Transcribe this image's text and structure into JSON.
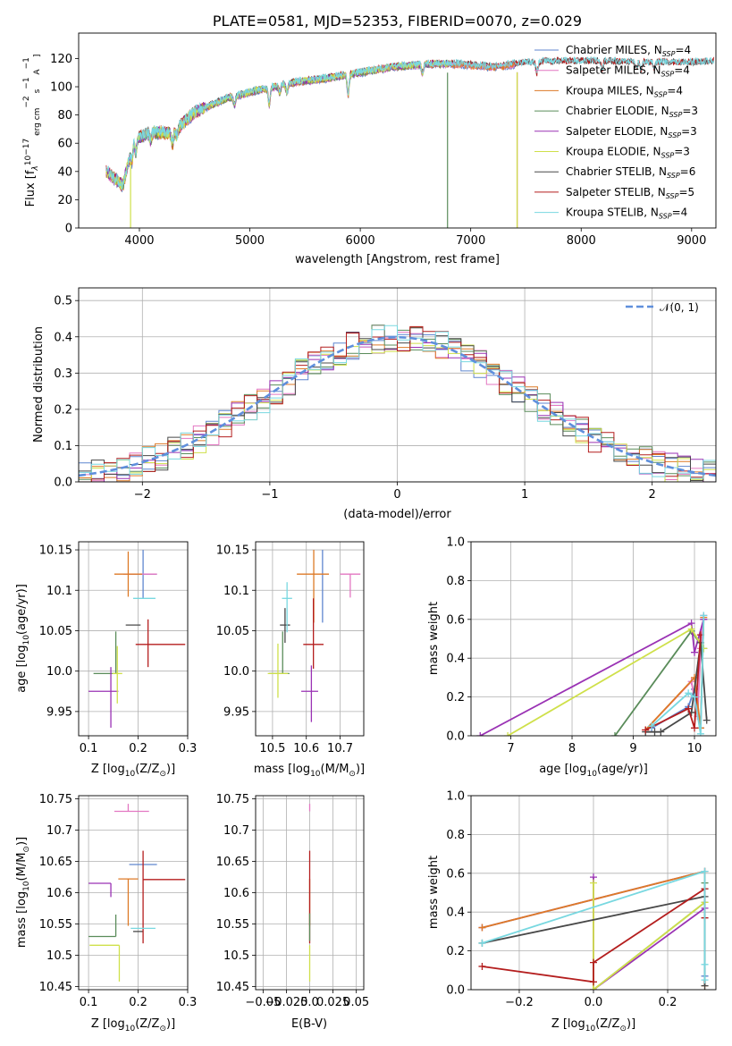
{
  "palette": [
    "#5f86cf",
    "#e377c2",
    "#dd7a27",
    "#5a8c5a",
    "#9a32b4",
    "#cfe04a",
    "#484848",
    "#b41e1e",
    "#78d8e0"
  ],
  "normal_curve_color": "#5f8fdc",
  "chart_data": [
    {
      "id": "spectrum",
      "type": "line",
      "title": "PLATE=0581, MJD=52353, FIBERID=0070, z=0.029",
      "xlabel": "wavelength [Angstrom, rest frame]",
      "ylabel_parts": [
        "Flux [f",
        "λ",
        "10",
        "−17",
        " erg cm",
        "−2",
        " s",
        "−1",
        " A",
        "−1",
        "]"
      ],
      "xlim": [
        3450,
        9220
      ],
      "ylim": [
        0,
        138
      ],
      "xticks": [
        4000,
        5000,
        6000,
        7000,
        8000,
        9000
      ],
      "yticks": [
        0,
        20,
        40,
        60,
        80,
        100,
        120
      ],
      "grid": false,
      "legend_position": "top-right",
      "legend": [
        {
          "base": "Chabrier MILES, N",
          "sub": "SSP",
          "suffix": "=4"
        },
        {
          "base": "Salpeter MILES, N",
          "sub": "SSP",
          "suffix": "=4"
        },
        {
          "base": "Kroupa MILES, N",
          "sub": "SSP",
          "suffix": "=4"
        },
        {
          "base": "Chabrier ELODIE, N",
          "sub": "SSP",
          "suffix": "=3"
        },
        {
          "base": "Salpeter ELODIE, N",
          "sub": "SSP",
          "suffix": "=3"
        },
        {
          "base": "Kroupa ELODIE, N",
          "sub": "SSP",
          "suffix": "=3"
        },
        {
          "base": "Chabrier STELIB, N",
          "sub": "SSP",
          "suffix": "=6"
        },
        {
          "base": "Salpeter STELIB, N",
          "sub": "SSP",
          "suffix": "=5"
        },
        {
          "base": "Kroupa STELIB, N",
          "sub": "SSP",
          "suffix": "=4"
        }
      ],
      "continuum_wavelength": [
        3700,
        3850,
        3950,
        4100,
        4300,
        4500,
        4800,
        5100,
        5400,
        5700,
        6000,
        6300,
        6600,
        6900,
        7200,
        7500,
        7800,
        8200,
        8600,
        9000,
        9200
      ],
      "continuum_flux": [
        40,
        30,
        62,
        68,
        67,
        82,
        92,
        98,
        103,
        106,
        110,
        114,
        116,
        116,
        114,
        117,
        118,
        118,
        117,
        117,
        118
      ],
      "spectrum_range": {
        "stelib_end": 9200,
        "miles_end": 7400,
        "elodie_end": 6800
      },
      "drop_lines": [
        {
          "series": 5,
          "x": 3920
        },
        {
          "series": 3,
          "x": 6790
        },
        {
          "series": 7,
          "x": 7420
        },
        {
          "series": 5,
          "x": 7420
        }
      ]
    },
    {
      "id": "residual-histogram",
      "type": "step",
      "xlabel": "(data-model)/error",
      "ylabel": "Normed distribution",
      "xlim": [
        -2.5,
        2.5
      ],
      "ylim": [
        0,
        0.535
      ],
      "xticks": [
        -2,
        -1,
        0,
        1,
        2
      ],
      "yticks": [
        0.0,
        0.1,
        0.2,
        0.3,
        0.4,
        0.5
      ],
      "grid": true,
      "legend_position": "top-right",
      "legend": [
        {
          "label": "𝒩(0, 1)"
        }
      ],
      "bin_width": 0.1
    },
    {
      "id": "age-vs-z",
      "type": "errorbar",
      "xlabel": {
        "base": "Z [log",
        "sub": "10",
        "rest": "(Z/Z",
        "sub2": "⊙",
        "end": ")]"
      },
      "ylabel": {
        "base": "age  [log",
        "sub": "10",
        "rest": "(age/yr)]"
      },
      "xlim": [
        0.08,
        0.3
      ],
      "ylim": [
        9.92,
        10.16
      ],
      "xticks": [
        0.1,
        0.2,
        0.3
      ],
      "yticks": [
        9.95,
        10.0,
        10.05,
        10.1,
        10.15
      ],
      "grid": true,
      "points": [
        {
          "series": 0,
          "x": 0.21,
          "y": 10.12,
          "xerr": [
            0.028,
            0.028
          ],
          "yerr": [
            0.03,
            0.03
          ]
        },
        {
          "series": 1,
          "x": 0.21,
          "y": 10.12,
          "xerr": [
            0.04,
            0.028
          ],
          "yerr": [
            0.0,
            0.0
          ]
        },
        {
          "series": 2,
          "x": 0.18,
          "y": 10.12,
          "xerr": [
            0.028,
            0.028
          ],
          "yerr": [
            0.028,
            0.028
          ]
        },
        {
          "series": 3,
          "x": 0.155,
          "y": 9.997,
          "xerr": [
            0.045,
            0.005
          ],
          "yerr": [
            0.0,
            0.052
          ]
        },
        {
          "series": 4,
          "x": 0.145,
          "y": 9.975,
          "xerr": [
            0.045,
            0.015
          ],
          "yerr": [
            0.045,
            0.03
          ]
        },
        {
          "series": 5,
          "x": 0.158,
          "y": 9.997,
          "xerr": [
            0.01,
            0.01
          ],
          "yerr": [
            0.037,
            0.034
          ]
        },
        {
          "series": 6,
          "x": 0.205,
          "y": 10.057,
          "xerr": [
            0.03,
            0.0
          ],
          "yerr": [
            0.0,
            0.0
          ]
        },
        {
          "series": 7,
          "x": 0.22,
          "y": 10.033,
          "xerr": [
            0.025,
            0.075
          ],
          "yerr": [
            0.028,
            0.031
          ]
        },
        {
          "series": 8,
          "x": 0.21,
          "y": 10.09,
          "xerr": [
            0.02,
            0.025
          ],
          "yerr": [
            0.0,
            0.0
          ]
        }
      ]
    },
    {
      "id": "age-vs-mass",
      "type": "errorbar",
      "xlabel": {
        "base": "mass [log",
        "sub": "10",
        "rest": "(M/M",
        "sub2": "⊙",
        "end": ")]"
      },
      "xlim": [
        10.45,
        10.77
      ],
      "ylim": [
        9.92,
        10.16
      ],
      "xticks": [
        10.5,
        10.6,
        10.7
      ],
      "yticks": [
        9.95,
        10.0,
        10.05,
        10.1,
        10.15
      ],
      "grid": true,
      "points": [
        {
          "series": 0,
          "x": 10.648,
          "y": 10.12,
          "xerr": [
            0.0,
            0.0
          ],
          "yerr": [
            0.06,
            0.03
          ]
        },
        {
          "series": 1,
          "x": 10.73,
          "y": 10.12,
          "xerr": [
            0.03,
            0.03
          ],
          "yerr": [
            0.029,
            0.0
          ]
        },
        {
          "series": 2,
          "x": 10.622,
          "y": 10.12,
          "xerr": [
            0.05,
            0.045
          ],
          "yerr": [
            0.06,
            0.03
          ]
        },
        {
          "series": 3,
          "x": 10.53,
          "y": 9.997,
          "xerr": [
            0.04,
            0.02
          ],
          "yerr": [
            0.0,
            0.052
          ]
        },
        {
          "series": 4,
          "x": 10.615,
          "y": 9.975,
          "xerr": [
            0.03,
            0.02
          ],
          "yerr": [
            0.038,
            0.032
          ]
        },
        {
          "series": 5,
          "x": 10.516,
          "y": 9.997,
          "xerr": [
            0.03,
            0.03
          ],
          "yerr": [
            0.03,
            0.037
          ]
        },
        {
          "series": 6,
          "x": 10.537,
          "y": 10.057,
          "xerr": [
            0.015,
            0.015
          ],
          "yerr": [
            0.022,
            0.021
          ]
        },
        {
          "series": 7,
          "x": 10.621,
          "y": 10.033,
          "xerr": [
            0.03,
            0.03
          ],
          "yerr": [
            0.03,
            0.057
          ]
        },
        {
          "series": 8,
          "x": 10.543,
          "y": 10.09,
          "xerr": [
            0.015,
            0.015
          ],
          "yerr": [
            0.042,
            0.02
          ]
        }
      ]
    },
    {
      "id": "mass-weight-vs-age",
      "type": "line",
      "xlabel": {
        "base": "age  [log",
        "sub": "10",
        "rest": "(age/yr)]"
      },
      "ylabel": "mass weight",
      "xlim": [
        6.35,
        10.35
      ],
      "ylim": [
        0.0,
        1.0
      ],
      "xticks": [
        7,
        8,
        9,
        10
      ],
      "yticks": [
        0.0,
        0.2,
        0.4,
        0.6,
        0.8,
        1.0
      ],
      "grid": true,
      "series_points": [
        {
          "series": 0,
          "x": [
            9.3,
            9.9,
            10.0,
            10.1,
            10.15
          ],
          "y": [
            0.04,
            0.15,
            0.24,
            0.04,
            0.6
          ]
        },
        {
          "series": 1,
          "x": [
            9.2,
            9.95,
            10.05,
            10.1,
            10.15
          ],
          "y": [
            0.03,
            0.28,
            0.1,
            0.45,
            0.62
          ]
        },
        {
          "series": 2,
          "x": [
            9.2,
            10.0,
            10.1,
            10.15
          ],
          "y": [
            0.03,
            0.3,
            0.04,
            0.61
          ]
        },
        {
          "series": 3,
          "x": [
            8.7,
            9.95,
            10.15
          ],
          "y": [
            0.0,
            0.54,
            0.45
          ]
        },
        {
          "series": 4,
          "x": [
            6.5,
            9.95,
            10.0,
            10.15
          ],
          "y": [
            0.0,
            0.58,
            0.43,
            0.6
          ]
        },
        {
          "series": 5,
          "x": [
            6.95,
            9.95,
            10.15
          ],
          "y": [
            0.0,
            0.55,
            0.45
          ]
        },
        {
          "series": 6,
          "x": [
            9.2,
            9.35,
            9.45,
            9.95,
            10.1,
            10.2
          ],
          "y": [
            0.02,
            0.02,
            0.02,
            0.12,
            0.48,
            0.08
          ]
        },
        {
          "series": 7,
          "x": [
            9.2,
            9.9,
            10.0,
            10.1
          ],
          "y": [
            0.03,
            0.14,
            0.04,
            0.52
          ]
        },
        {
          "series": 8,
          "x": [
            9.3,
            9.9,
            10.0,
            10.1,
            10.15
          ],
          "y": [
            0.05,
            0.22,
            0.2,
            0.01,
            0.62
          ]
        }
      ]
    },
    {
      "id": "mass-vs-z",
      "type": "errorbar",
      "xlabel": {
        "base": "Z [log",
        "sub": "10",
        "rest": "(Z/Z",
        "sub2": "⊙",
        "end": ")]"
      },
      "ylabel": {
        "base": "mass [log",
        "sub": "10",
        "rest": "(M/M",
        "sub2": "⊙",
        "end": ")]"
      },
      "xlim": [
        0.08,
        0.3
      ],
      "ylim": [
        10.445,
        10.755
      ],
      "xticks": [
        0.1,
        0.2,
        0.3
      ],
      "yticks": [
        10.45,
        10.5,
        10.55,
        10.6,
        10.65,
        10.7,
        10.75
      ],
      "grid": true,
      "points": [
        {
          "series": 0,
          "x": 0.21,
          "y": 10.645,
          "xerr": [
            0.028,
            0.028
          ],
          "yerr": [
            0.0,
            0.0
          ]
        },
        {
          "series": 1,
          "x": 0.18,
          "y": 10.73,
          "xerr": [
            0.028,
            0.042
          ],
          "yerr": [
            0.0,
            0.012
          ]
        },
        {
          "series": 2,
          "x": 0.18,
          "y": 10.622,
          "xerr": [
            0.02,
            0.02
          ],
          "yerr": [
            0.075,
            0.0
          ]
        },
        {
          "series": 3,
          "x": 0.155,
          "y": 10.53,
          "xerr": [
            0.055,
            0.0
          ],
          "yerr": [
            0.0,
            0.035
          ]
        },
        {
          "series": 4,
          "x": 0.145,
          "y": 10.615,
          "xerr": [
            0.045,
            0.0
          ],
          "yerr": [
            0.022,
            0.0
          ]
        },
        {
          "series": 5,
          "x": 0.162,
          "y": 10.516,
          "xerr": [
            0.06,
            0.0
          ],
          "yerr": [
            0.058,
            0.0
          ]
        },
        {
          "series": 6,
          "x": 0.21,
          "y": 10.538,
          "xerr": [
            0.02,
            0.0
          ],
          "yerr": [
            0.0,
            0.0
          ]
        },
        {
          "series": 7,
          "x": 0.21,
          "y": 10.621,
          "xerr": [
            0.0,
            0.085
          ],
          "yerr": [
            0.102,
            0.046
          ]
        },
        {
          "series": 8,
          "x": 0.21,
          "y": 10.543,
          "xerr": [
            0.025,
            0.025
          ],
          "yerr": [
            0.0,
            0.0
          ]
        }
      ]
    },
    {
      "id": "mass-vs-ebv",
      "type": "errorbar",
      "xlabel": "E(B-V)",
      "xlim": [
        -0.058,
        0.058
      ],
      "ylim": [
        10.445,
        10.755
      ],
      "xticks": [
        -0.05,
        -0.025,
        0.0,
        0.025,
        0.05
      ],
      "yticks": [
        10.45,
        10.5,
        10.55,
        10.6,
        10.65,
        10.7,
        10.75
      ],
      "grid": true,
      "points": [
        {
          "series": 1,
          "x": 0.0,
          "y": 10.73,
          "xerr": [
            0.0,
            0.0
          ],
          "yerr": [
            0.0,
            0.012
          ]
        },
        {
          "series": 2,
          "x": 0.0,
          "y": 10.622,
          "xerr": [
            0.0,
            0.0
          ],
          "yerr": [
            0.075,
            0.0
          ]
        },
        {
          "series": 5,
          "x": 0.0,
          "y": 10.516,
          "xerr": [
            0.0,
            0.0
          ],
          "yerr": [
            0.058,
            0.0
          ]
        },
        {
          "series": 7,
          "x": 0.0,
          "y": 10.621,
          "xerr": [
            0.0,
            0.0
          ],
          "yerr": [
            0.102,
            0.046
          ]
        },
        {
          "series": 3,
          "x": 0.0,
          "y": 10.545,
          "xerr": [
            0.0,
            0.0
          ],
          "yerr": [
            0.022,
            0.022
          ]
        }
      ]
    },
    {
      "id": "mass-weight-vs-z",
      "type": "line",
      "xlabel": {
        "base": "Z [log",
        "sub": "10",
        "rest": "(Z/Z",
        "sub2": "⊙",
        "end": ")]"
      },
      "ylabel": "mass weight",
      "xlim": [
        -0.33,
        0.33
      ],
      "ylim": [
        0.0,
        1.0
      ],
      "xticks": [
        -0.2,
        0.0,
        0.2
      ],
      "yticks": [
        0.0,
        0.2,
        0.4,
        0.6,
        0.8,
        1.0
      ],
      "grid": true,
      "series_points": [
        {
          "series": 0,
          "x": [
            -0.3,
            0.3,
            0.3
          ],
          "y": [
            0.32,
            0.61,
            0.07
          ]
        },
        {
          "series": 1,
          "x": [
            -0.3,
            0.3
          ],
          "y": [
            0.32,
            0.61
          ]
        },
        {
          "series": 2,
          "x": [
            -0.3,
            0.3,
            0.3
          ],
          "y": [
            0.32,
            0.61,
            0.02
          ]
        },
        {
          "series": 3,
          "x": [
            0.0,
            0.3,
            0.3
          ],
          "y": [
            0.0,
            0.45,
            0.55
          ]
        },
        {
          "series": 4,
          "x": [
            0.0,
            0.0,
            0.3
          ],
          "y": [
            0.58,
            0.0,
            0.42
          ]
        },
        {
          "series": 5,
          "x": [
            0.0,
            0.0,
            0.3
          ],
          "y": [
            0.55,
            0.0,
            0.45
          ]
        },
        {
          "series": 6,
          "x": [
            -0.3,
            0.3,
            0.3,
            0.3
          ],
          "y": [
            0.24,
            0.48,
            0.02,
            0.52
          ]
        },
        {
          "series": 7,
          "x": [
            -0.3,
            0.0,
            0.0,
            0.3,
            0.3
          ],
          "y": [
            0.12,
            0.04,
            0.14,
            0.52,
            0.37
          ]
        },
        {
          "series": 8,
          "x": [
            -0.3,
            0.3,
            0.3,
            0.3
          ],
          "y": [
            0.24,
            0.61,
            0.05,
            0.13
          ]
        }
      ]
    }
  ]
}
